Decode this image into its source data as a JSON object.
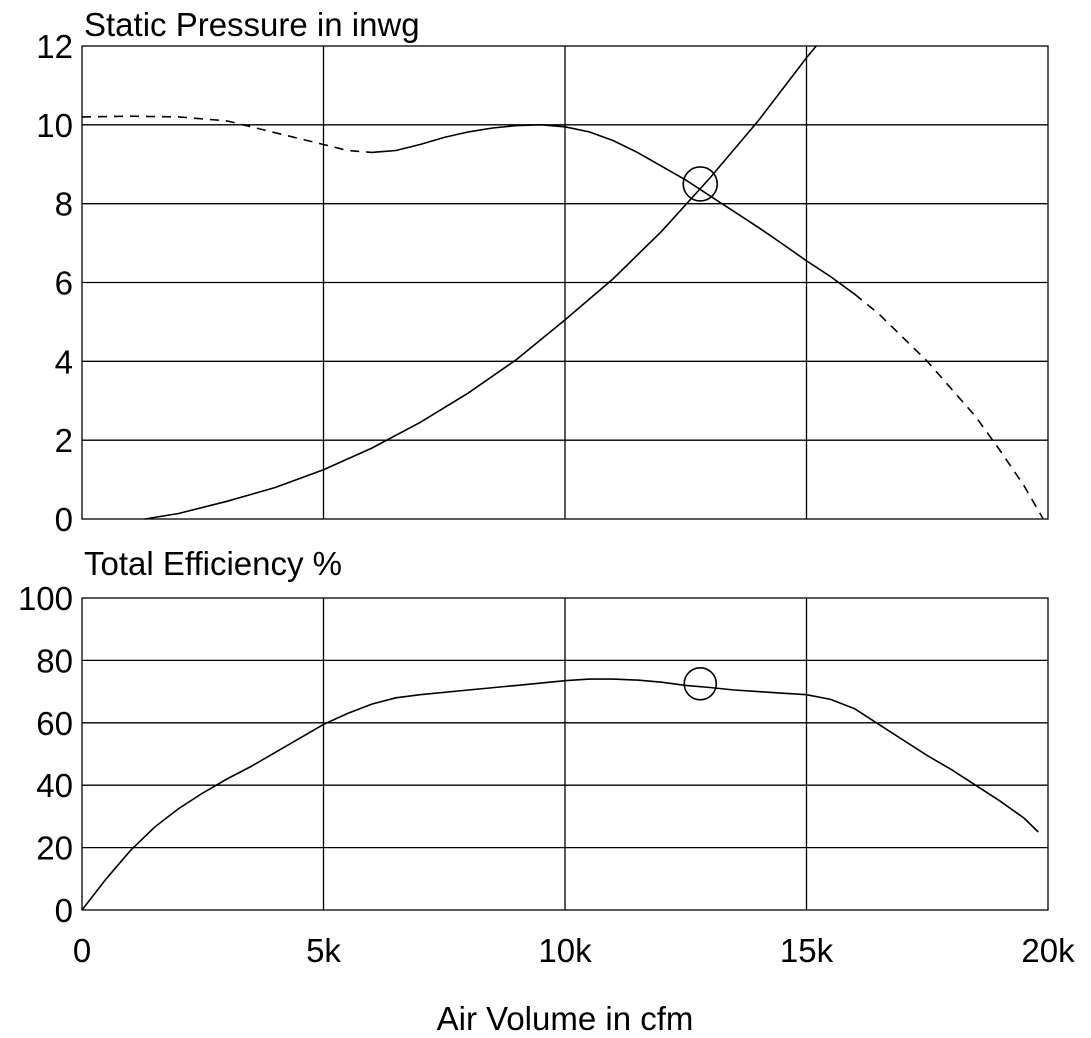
{
  "chart_data": [
    {
      "type": "line",
      "title": "Static Pressure in inwg",
      "xlabel": "",
      "ylabel": "",
      "xlim": [
        0,
        20000
      ],
      "ylim": [
        0,
        12
      ],
      "x_ticks": [
        0,
        5000,
        10000,
        15000,
        20000
      ],
      "y_ticks": [
        0,
        2,
        4,
        6,
        8,
        10,
        12
      ],
      "y_tick_labels": [
        "0",
        "2",
        "4",
        "6",
        "8",
        "10",
        "12"
      ],
      "grid": true,
      "series": [
        {
          "style": "dashed",
          "points": [
            [
              0,
              10.2
            ],
            [
              1000,
              10.22
            ],
            [
              2000,
              10.2
            ],
            [
              3000,
              10.1
            ],
            [
              4000,
              9.8
            ],
            [
              5000,
              9.5
            ],
            [
              5500,
              9.35
            ],
            [
              6000,
              9.3
            ]
          ]
        },
        {
          "style": "solid",
          "points": [
            [
              6000,
              9.3
            ],
            [
              6500,
              9.35
            ],
            [
              7000,
              9.5
            ],
            [
              7500,
              9.68
            ],
            [
              8000,
              9.82
            ],
            [
              8500,
              9.92
            ],
            [
              9000,
              9.98
            ],
            [
              9500,
              10.0
            ],
            [
              10000,
              9.95
            ],
            [
              10500,
              9.82
            ],
            [
              11000,
              9.6
            ],
            [
              11500,
              9.3
            ],
            [
              12000,
              8.95
            ],
            [
              12500,
              8.6
            ],
            [
              13000,
              8.2
            ],
            [
              13500,
              7.8
            ],
            [
              14000,
              7.4
            ],
            [
              14500,
              6.98
            ],
            [
              15000,
              6.55
            ],
            [
              15500,
              6.15
            ],
            [
              16000,
              5.7
            ]
          ]
        },
        {
          "style": "dashed",
          "points": [
            [
              16000,
              5.7
            ],
            [
              16500,
              5.2
            ],
            [
              17000,
              4.6
            ],
            [
              17500,
              4.0
            ],
            [
              18000,
              3.3
            ],
            [
              18500,
              2.6
            ],
            [
              19000,
              1.75
            ],
            [
              19500,
              0.85
            ],
            [
              19900,
              0
            ]
          ]
        },
        {
          "style": "solid",
          "points": [
            [
              1300,
              0
            ],
            [
              2000,
              0.14
            ],
            [
              3000,
              0.45
            ],
            [
              4000,
              0.8
            ],
            [
              5000,
              1.25
            ],
            [
              6000,
              1.8
            ],
            [
              7000,
              2.45
            ],
            [
              8000,
              3.2
            ],
            [
              9000,
              4.05
            ],
            [
              10000,
              5.05
            ],
            [
              11000,
              6.1
            ],
            [
              12000,
              7.3
            ],
            [
              13000,
              8.65
            ],
            [
              14000,
              10.1
            ],
            [
              15000,
              11.7
            ],
            [
              15200,
              12.0
            ]
          ]
        }
      ],
      "markers": [
        [
          12800,
          8.5
        ]
      ]
    },
    {
      "type": "line",
      "title": "Total Efficiency %",
      "xlabel": "Air Volume in cfm",
      "ylabel": "",
      "xlim": [
        0,
        20000
      ],
      "ylim": [
        0,
        100
      ],
      "x_ticks": [
        0,
        5000,
        10000,
        15000,
        20000
      ],
      "x_tick_labels": [
        "0",
        "5k",
        "10k",
        "15k",
        "20k"
      ],
      "y_ticks": [
        0,
        20,
        40,
        60,
        80,
        100
      ],
      "y_tick_labels": [
        "0",
        "20",
        "40",
        "60",
        "80",
        "100"
      ],
      "grid": true,
      "series": [
        {
          "style": "solid",
          "points": [
            [
              0,
              0
            ],
            [
              500,
              10
            ],
            [
              1000,
              19
            ],
            [
              1500,
              26.5
            ],
            [
              2000,
              32.5
            ],
            [
              2500,
              37.5
            ],
            [
              3000,
              42
            ],
            [
              3500,
              46
            ],
            [
              4000,
              50.5
            ],
            [
              4500,
              55
            ],
            [
              5000,
              59.5
            ],
            [
              5500,
              63
            ],
            [
              6000,
              66
            ],
            [
              6500,
              68
            ],
            [
              7000,
              69
            ],
            [
              8000,
              70.5
            ],
            [
              9000,
              72
            ],
            [
              10000,
              73.5
            ],
            [
              10500,
              74
            ],
            [
              11000,
              74
            ],
            [
              11500,
              73.7
            ],
            [
              12000,
              73
            ],
            [
              12500,
              72
            ],
            [
              13000,
              71.3
            ],
            [
              13500,
              70.5
            ],
            [
              14000,
              70
            ],
            [
              14500,
              69.5
            ],
            [
              15000,
              69
            ],
            [
              15500,
              67.5
            ],
            [
              16000,
              64.5
            ],
            [
              16500,
              59.5
            ],
            [
              17000,
              54.5
            ],
            [
              17500,
              49.5
            ],
            [
              18000,
              45
            ],
            [
              18500,
              40
            ],
            [
              19000,
              35
            ],
            [
              19500,
              29.5
            ],
            [
              19800,
              25
            ]
          ]
        }
      ],
      "markers": [
        [
          12800,
          72.5
        ]
      ]
    }
  ]
}
